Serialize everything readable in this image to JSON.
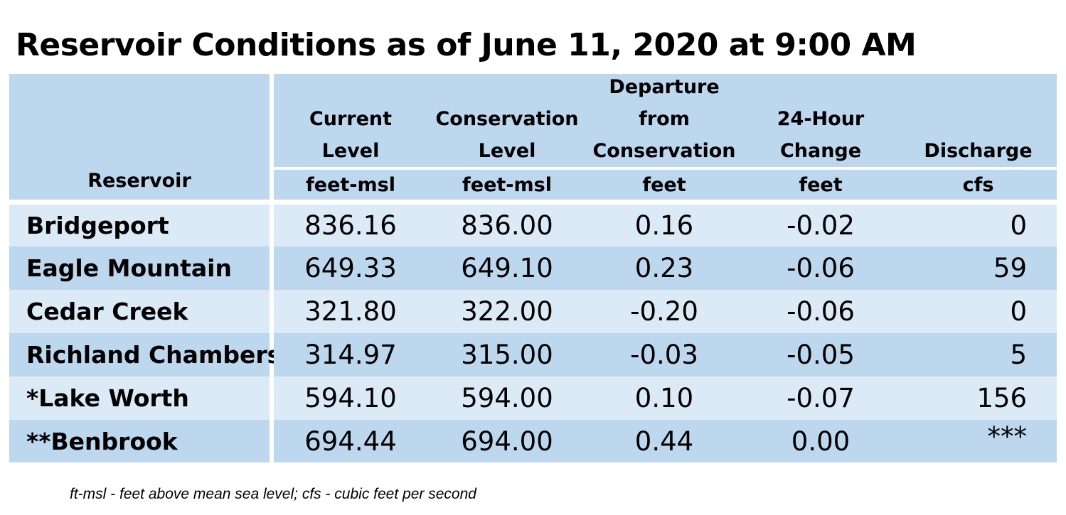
{
  "title": "Reservoir Conditions as of June 11, 2020 at 9:00 AM",
  "headers": {
    "reservoir": "Reservoir",
    "current_level": [
      "Current",
      "Level"
    ],
    "conservation_level": [
      "Conservation",
      "Level"
    ],
    "departure": [
      "Departure",
      "from",
      "Conservation"
    ],
    "change": [
      "24-Hour",
      "Change"
    ],
    "discharge": [
      "Discharge"
    ]
  },
  "units": {
    "current_level": "feet-msl",
    "conservation_level": "feet-msl",
    "departure": "feet",
    "change": "feet",
    "discharge": "cfs"
  },
  "rows": [
    {
      "reservoir": "Bridgeport",
      "current": "836.16",
      "conservation": "836.00",
      "departure": "0.16",
      "change": "-0.02",
      "discharge": "0"
    },
    {
      "reservoir": "Eagle Mountain",
      "current": "649.33",
      "conservation": "649.10",
      "departure": "0.23",
      "change": "-0.06",
      "discharge": "59"
    },
    {
      "reservoir": "Cedar Creek",
      "current": "321.80",
      "conservation": "322.00",
      "departure": "-0.20",
      "change": "-0.06",
      "discharge": "0"
    },
    {
      "reservoir": "Richland Chambers",
      "current": "314.97",
      "conservation": "315.00",
      "departure": "-0.03",
      "change": "-0.05",
      "discharge": "5"
    },
    {
      "reservoir": "*Lake Worth",
      "current": "594.10",
      "conservation": "594.00",
      "departure": "0.10",
      "change": "-0.07",
      "discharge": "156"
    },
    {
      "reservoir": "**Benbrook",
      "current": "694.44",
      "conservation": "694.00",
      "departure": "0.44",
      "change": "0.00",
      "discharge": "***"
    }
  ],
  "footnote": "ft-msl - feet above mean sea level; cfs - cubic feet per second",
  "colors": {
    "header_bg": "#bdd7ee",
    "row_light": "#dceaf7",
    "row_dark": "#bdd7ee"
  }
}
